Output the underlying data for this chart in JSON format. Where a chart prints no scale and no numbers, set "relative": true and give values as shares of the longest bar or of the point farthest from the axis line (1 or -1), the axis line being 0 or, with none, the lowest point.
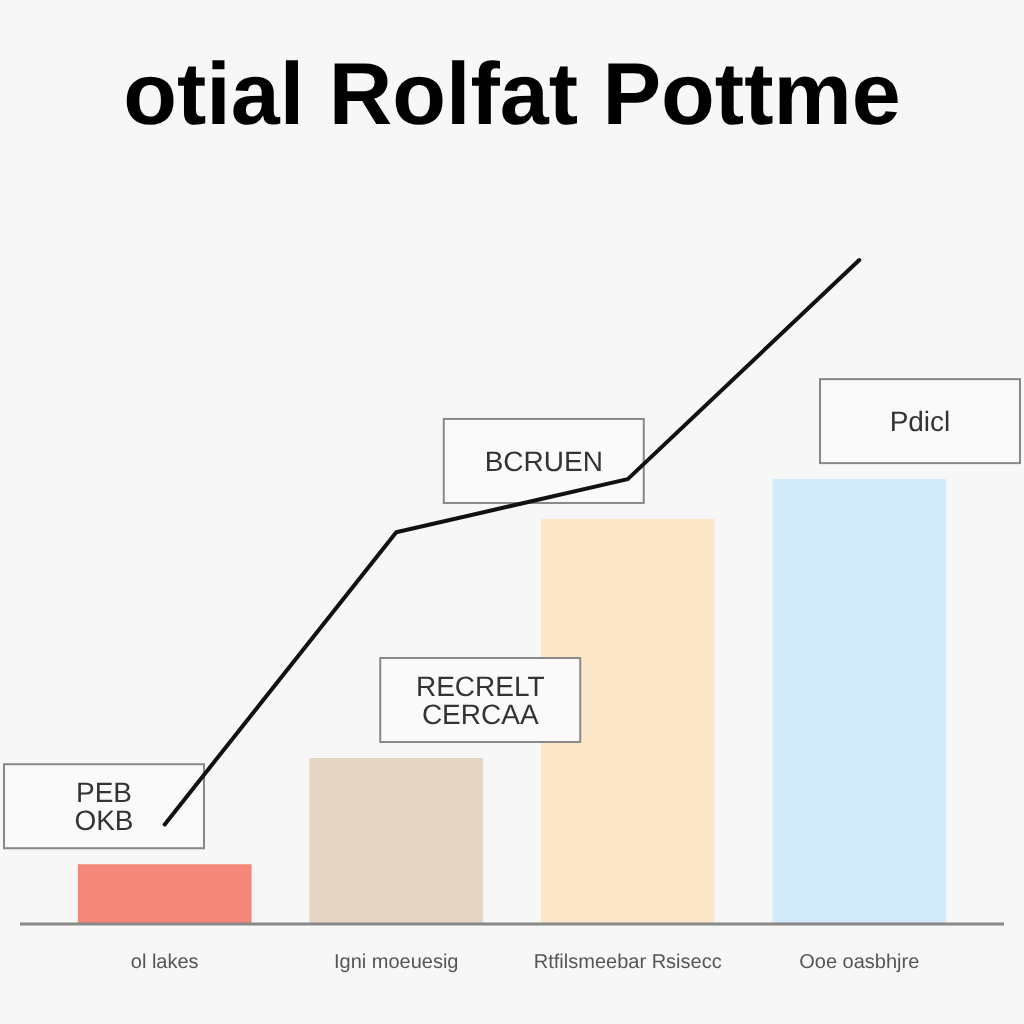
{
  "chart_data": {
    "type": "bar",
    "title": "otial Rolfat Pottme",
    "relative": true,
    "categories": [
      "ol lakes",
      "Igni moeuesig",
      "Rtfilsmeebar Rsisecc",
      "Ooe oasbhjre"
    ],
    "series": [
      {
        "colors": [
          "#f4877a",
          "#e5d5c3",
          "#fce6c8",
          "#d3ebfa"
        ],
        "values": [
          0.09,
          0.25,
          0.61,
          0.67
        ]
      },
      {
        "type": "line",
        "color": "#111111",
        "values": [
          0.15,
          0.59,
          0.67,
          1
        ]
      }
    ],
    "annotations": [
      "PEB OKB",
      "RECRELT CERCAA",
      "BCRUEN",
      "Pdicl"
    ]
  }
}
